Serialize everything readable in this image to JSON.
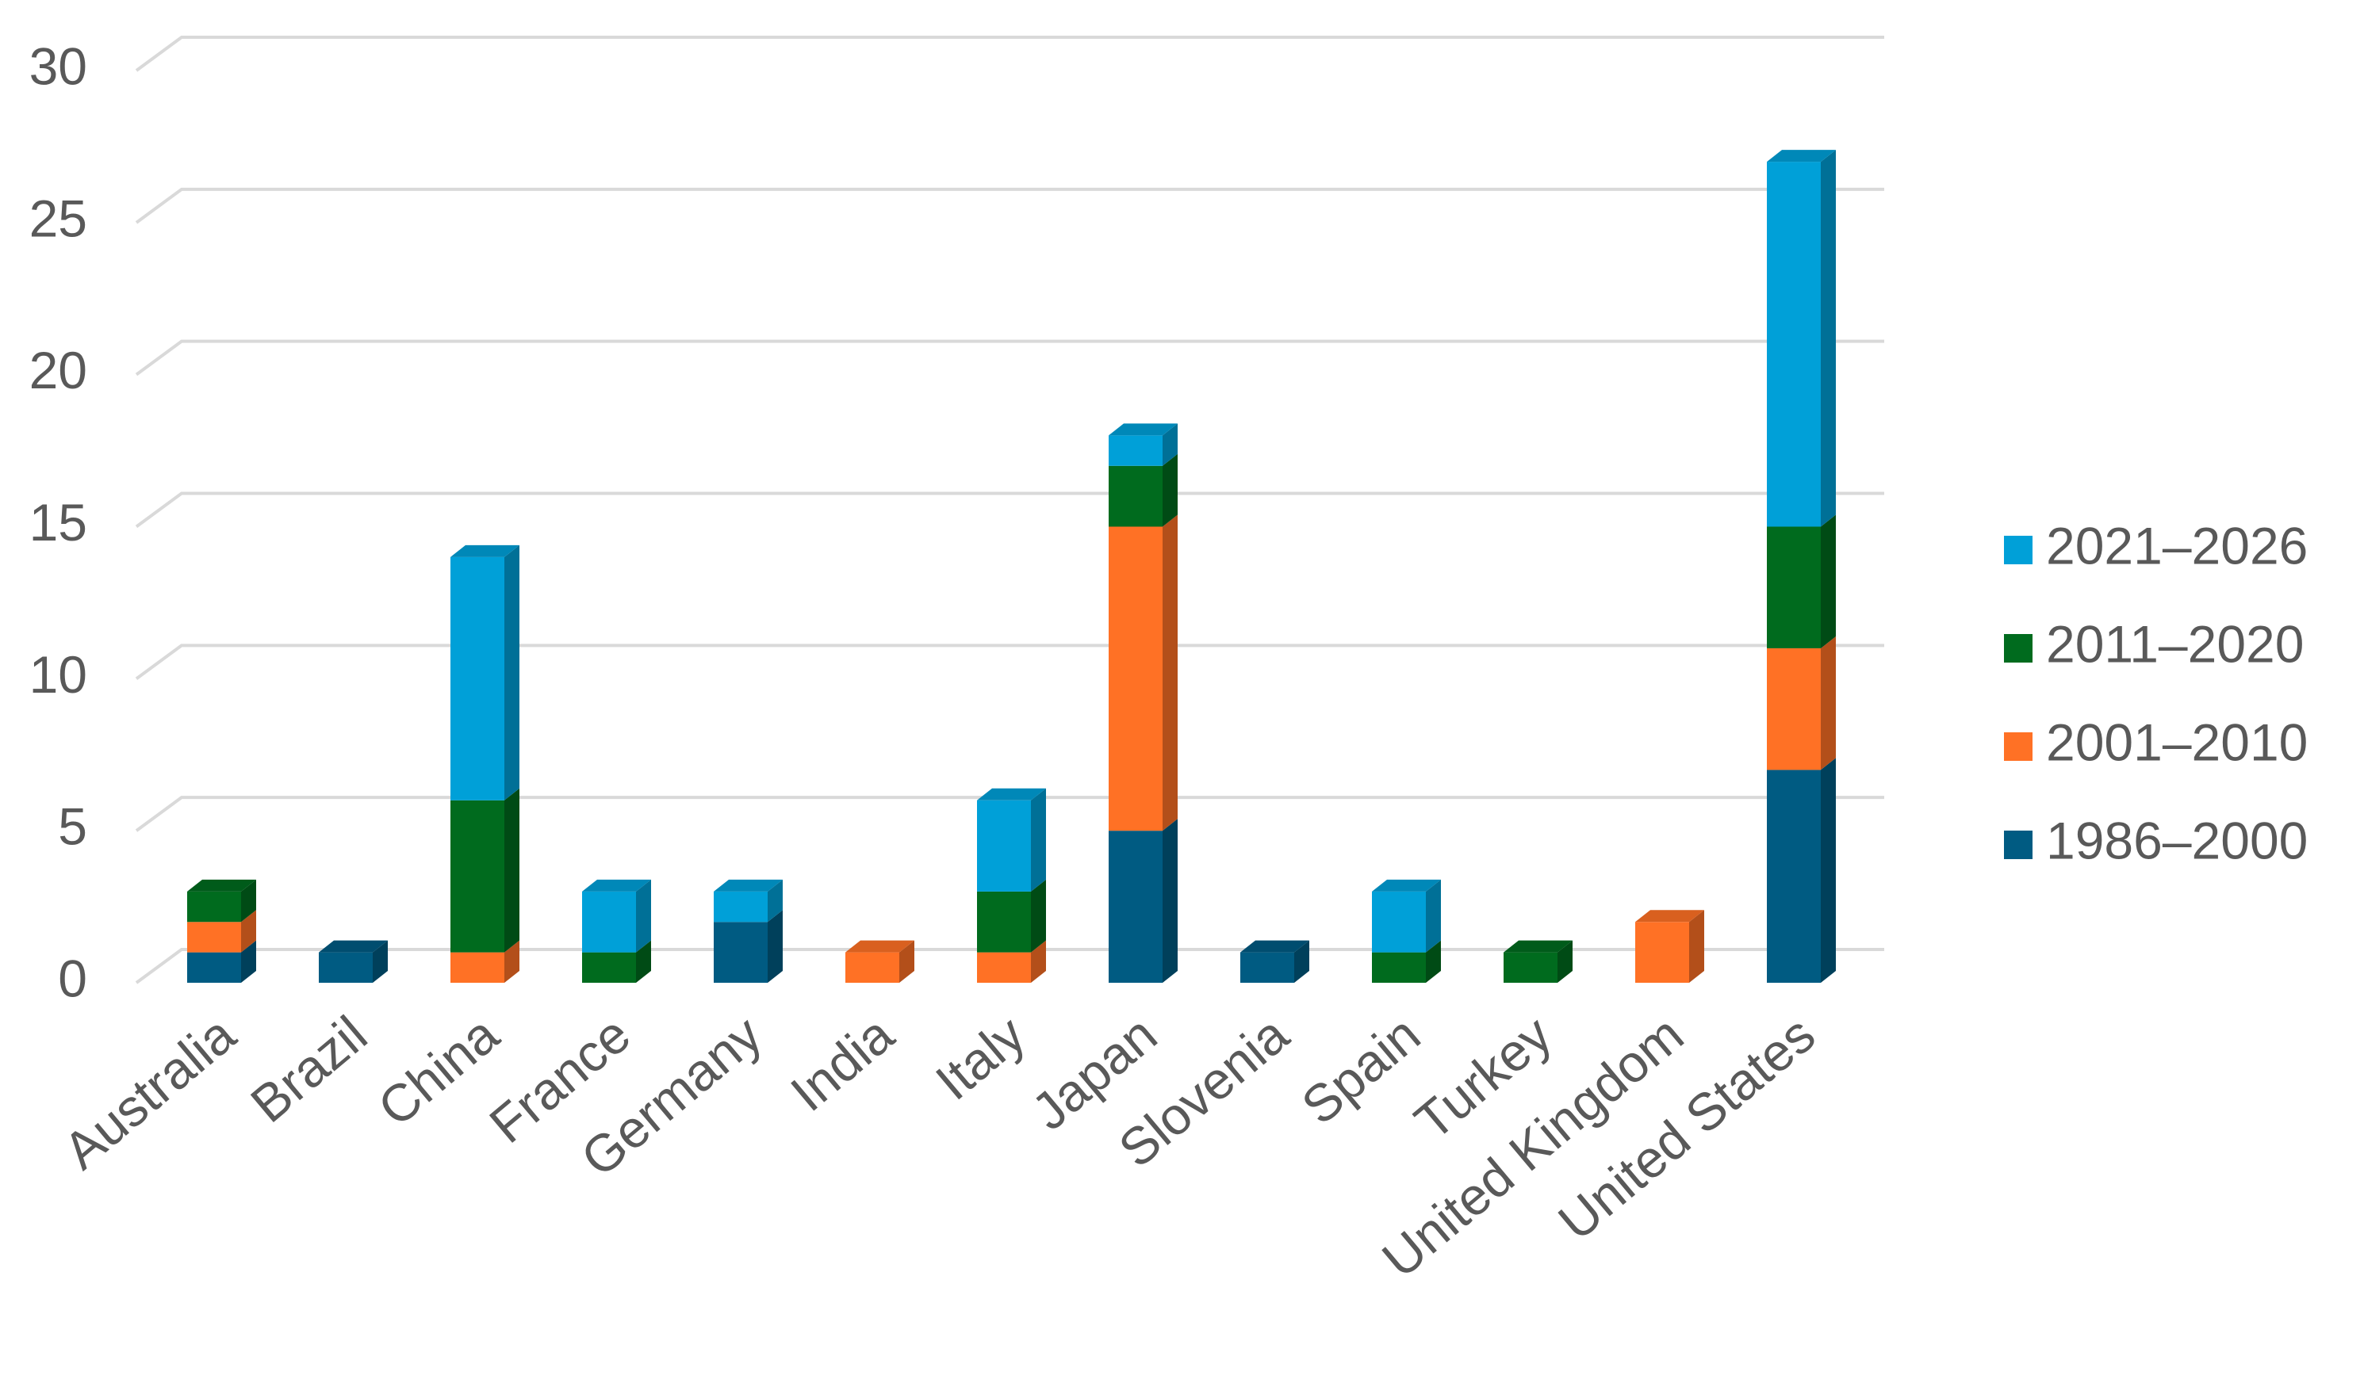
{
  "chart_data": {
    "type": "bar3d-stacked",
    "categories": [
      "Australia",
      "Brazil",
      "China",
      "France",
      "Germany",
      "India",
      "Italy",
      "Japan",
      "Slovenia",
      "Spain",
      "Turkey",
      "United Kingdom",
      "United States"
    ],
    "series": [
      {
        "name": "1986–2000",
        "color": "#005b82",
        "values": [
          1,
          1,
          0,
          0,
          2,
          0,
          0,
          5,
          1,
          0,
          0,
          0,
          7
        ]
      },
      {
        "name": "2001–2010",
        "color": "#ff7125",
        "values": [
          1,
          0,
          1,
          0,
          0,
          1,
          1,
          10,
          0,
          0,
          0,
          2,
          4
        ]
      },
      {
        "name": "2011–2020",
        "color": "#006b1e",
        "values": [
          1,
          0,
          5,
          1,
          0,
          0,
          2,
          2,
          0,
          1,
          1,
          0,
          4
        ]
      },
      {
        "name": "2021–2026",
        "color": "#00a0d8",
        "values": [
          0,
          0,
          8,
          2,
          1,
          0,
          3,
          1,
          0,
          2,
          0,
          0,
          12
        ]
      }
    ],
    "ylim": [
      0,
      30
    ],
    "yticks": [
      0,
      5,
      10,
      15,
      20,
      25,
      30
    ],
    "grid": true,
    "legend": "right"
  }
}
